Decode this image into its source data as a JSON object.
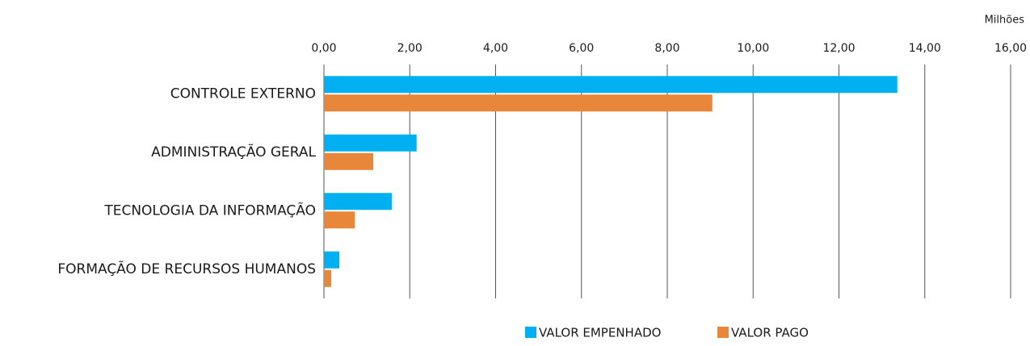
{
  "chart_data": {
    "type": "hbar",
    "xlabel": "Milhões",
    "categories": [
      "CONTROLE EXTERNO",
      "ADMINISTRAÇÃO GERAL",
      "TECNOLOGIA DA INFORMAÇÃO",
      "FORMAÇÃO DE RECURSOS HUMANOS"
    ],
    "series": [
      {
        "name": "VALOR EMPENHADO",
        "color": "#00b0f0",
        "values": [
          13.36,
          2.16,
          1.58,
          0.36
        ]
      },
      {
        "name": "VALOR PAGO",
        "color": "#e8873a",
        "values": [
          9.05,
          1.15,
          0.72,
          0.17
        ]
      }
    ],
    "xlim": [
      0,
      16
    ],
    "xticks": [
      {
        "value": 0,
        "label": "0,00"
      },
      {
        "value": 2,
        "label": "2,00"
      },
      {
        "value": 4,
        "label": "4,00"
      },
      {
        "value": 6,
        "label": "6,00"
      },
      {
        "value": 8,
        "label": "8,00"
      },
      {
        "value": 10,
        "label": "10,00"
      },
      {
        "value": 12,
        "label": "12,00"
      },
      {
        "value": 14,
        "label": "14,00"
      },
      {
        "value": 16,
        "label": "16,00"
      }
    ],
    "grid": true,
    "legend": "bottom"
  }
}
